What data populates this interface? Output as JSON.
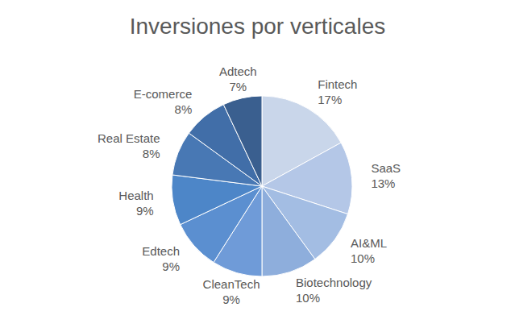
{
  "chart_data": {
    "type": "pie",
    "title": "Inversiones por verticales",
    "categories": [
      "Fintech",
      "SaaS",
      "AI&ML",
      "Biotechnology",
      "CleanTech",
      "Edtech",
      "Health",
      "Real Estate",
      "E-comerce",
      "Adtech"
    ],
    "values": [
      17,
      13,
      10,
      10,
      9,
      9,
      9,
      8,
      8,
      7
    ],
    "value_labels": [
      "17%",
      "13%",
      "10%",
      "10%",
      "9%",
      "9%",
      "9%",
      "8%",
      "8%",
      "7%"
    ],
    "colors": [
      "#c9d6ea",
      "#b4c7e7",
      "#a3bde3",
      "#8eaedc",
      "#6f9bd8",
      "#5b8fd0",
      "#4d86c8",
      "#4878b4",
      "#416ea8",
      "#3a5f8f"
    ],
    "data_labels": true
  }
}
